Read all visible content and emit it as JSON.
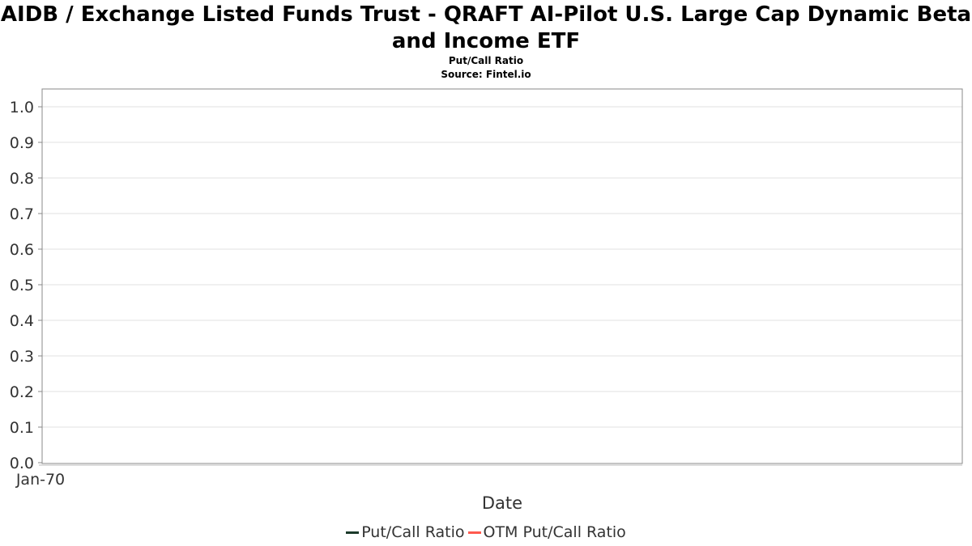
{
  "title": "AIDB / Exchange Listed Funds Trust - QRAFT AI-Pilot U.S. Large Cap Dynamic Beta and Income ETF",
  "subtitle": "Put/Call Ratio",
  "source": "Source: Fintel.io",
  "chart_data": {
    "type": "line",
    "xlabel": "Date",
    "ylabel": "",
    "x_tick_labels": [
      "Jan-70"
    ],
    "y_tick_labels": [
      "0.0",
      "0.1",
      "0.2",
      "0.3",
      "0.4",
      "0.5",
      "0.6",
      "0.7",
      "0.8",
      "0.9",
      "1.0"
    ],
    "ylim": [
      0,
      1.05
    ],
    "grid": true,
    "legend_position": "bottom",
    "series": [
      {
        "name": "Put/Call Ratio",
        "color": "#1b3a2a",
        "values": []
      },
      {
        "name": "OTM Put/Call Ratio",
        "color": "#ff5a4e",
        "values": []
      }
    ]
  }
}
